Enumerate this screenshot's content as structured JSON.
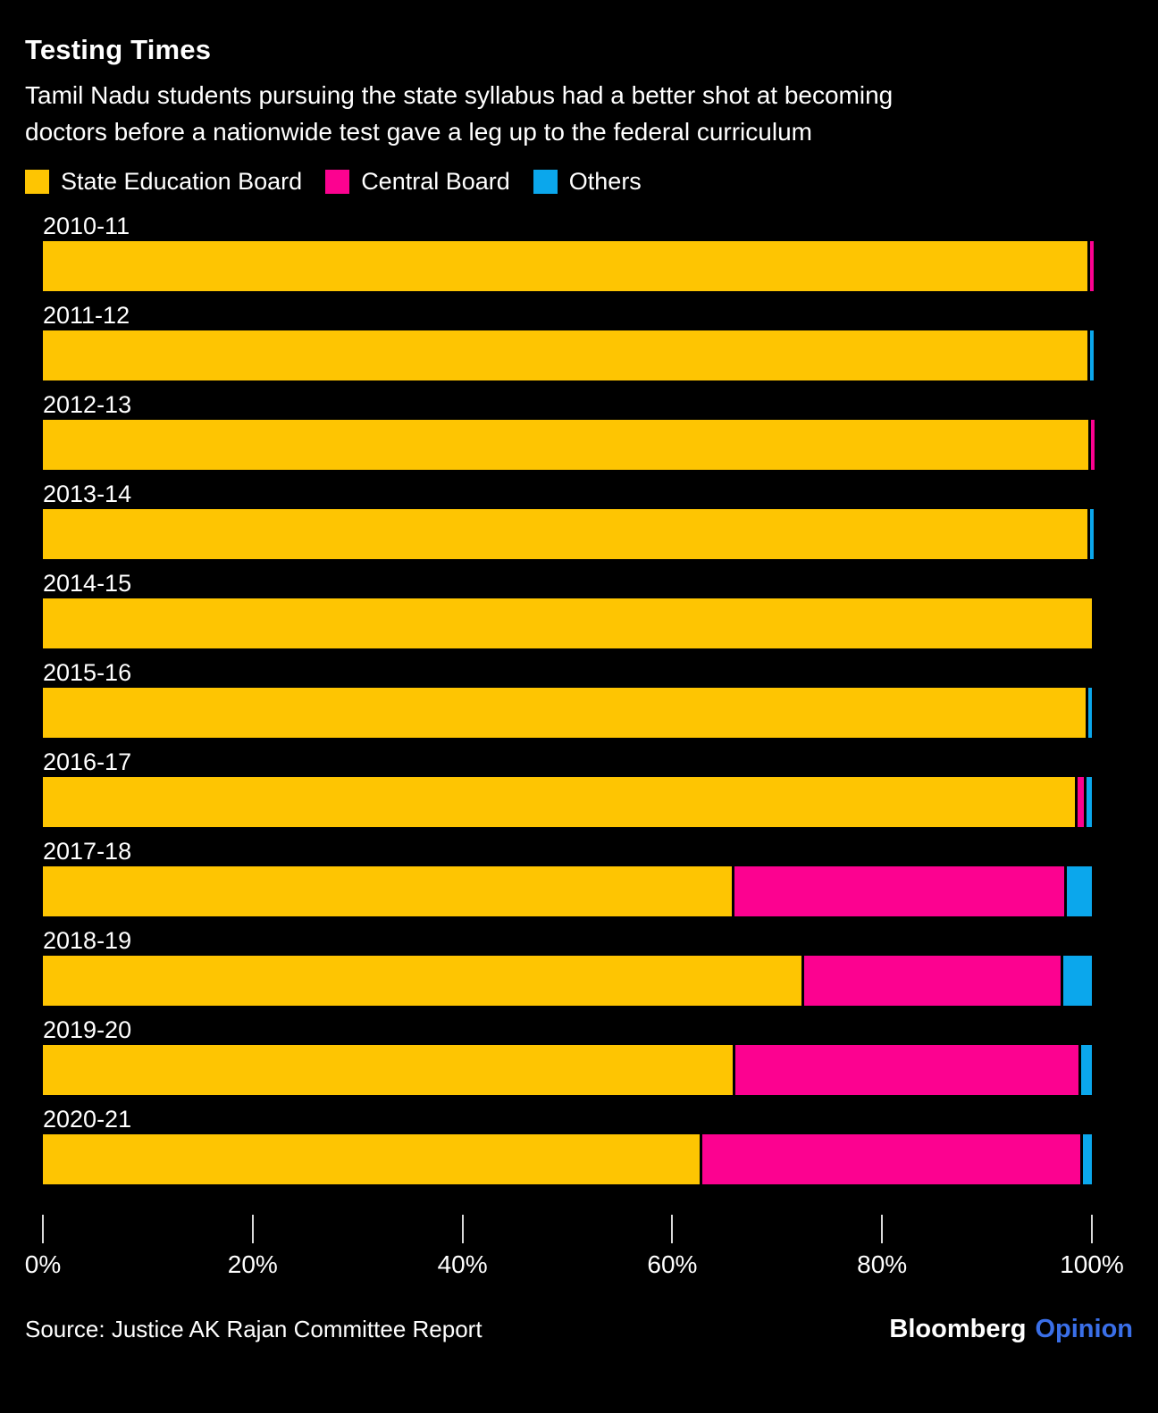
{
  "header": {
    "title": "Testing Times",
    "subtitle": "Tamil Nadu students pursuing the state syllabus had a better shot at becoming doctors before a nationwide test gave a leg up to the federal curriculum"
  },
  "legend": {
    "items": [
      {
        "label": "State Education Board",
        "color": "#FEC502"
      },
      {
        "label": "Central Board",
        "color": "#FC0290"
      },
      {
        "label": "Others",
        "color": "#0BA7EC"
      }
    ]
  },
  "chart_data": {
    "type": "bar",
    "orientation": "horizontal",
    "stacked": true,
    "unit": "%",
    "title": "Testing Times",
    "categories": [
      "2010-11",
      "2011-12",
      "2012-13",
      "2013-14",
      "2014-15",
      "2015-16",
      "2016-17",
      "2017-18",
      "2018-19",
      "2019-20",
      "2020-21"
    ],
    "series": [
      {
        "name": "State Education Board",
        "color": "#FEC502",
        "values": [
          99.6,
          99.6,
          99.7,
          99.6,
          100.0,
          99.4,
          98.4,
          65.7,
          72.3,
          65.8,
          62.6
        ]
      },
      {
        "name": "Central Board",
        "color": "#FC0290",
        "values": [
          0.4,
          0.0,
          0.3,
          0.0,
          0.0,
          0.0,
          0.8,
          31.7,
          24.7,
          32.9,
          36.3
        ]
      },
      {
        "name": "Others",
        "color": "#0BA7EC",
        "values": [
          0.0,
          0.4,
          0.0,
          0.4,
          0.0,
          0.6,
          0.8,
          2.6,
          3.0,
          1.3,
          1.1
        ]
      }
    ],
    "x_axis": {
      "range": [
        0,
        100
      ],
      "tick_values": [
        0,
        20,
        40,
        60,
        80,
        100
      ],
      "tick_labels": [
        "0%",
        "20%",
        "40%",
        "60%",
        "80%",
        "100%"
      ]
    },
    "grid": false,
    "legend_position": "top"
  },
  "footer": {
    "source": "Source: Justice AK Rajan Committee Report",
    "brand": "Bloomberg",
    "brand_suffix": "Opinion",
    "brand_suffix_color": "#3A6FE8"
  }
}
